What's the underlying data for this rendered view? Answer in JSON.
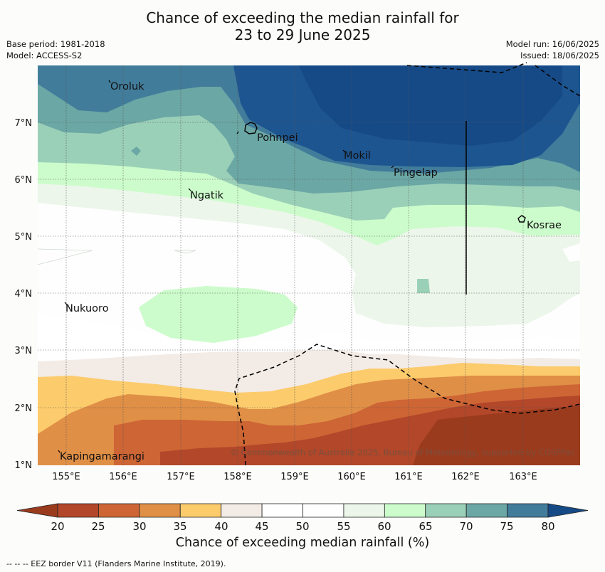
{
  "title": {
    "line1": "Chance of exceeding the median rainfall for",
    "line2": "23 to 29 June 2025"
  },
  "meta_left": {
    "base_period": "Base period: 1981-2018",
    "model": "Model: ACCESS-S2"
  },
  "meta_right": {
    "model_run": "Model run: 16/06/2025",
    "issued": "Issued: 18/06/2025"
  },
  "map": {
    "lon_labels": [
      "155°E",
      "156°E",
      "157°E",
      "158°E",
      "159°E",
      "160°E",
      "161°E",
      "162°E",
      "163°E"
    ],
    "lat_labels": [
      "7°N",
      "6°N",
      "5°N",
      "4°N",
      "3°N",
      "2°N",
      "1°N"
    ],
    "places": [
      {
        "name": "Oroluk"
      },
      {
        "name": "Pohnpei"
      },
      {
        "name": "Mokil"
      },
      {
        "name": "Pingelap"
      },
      {
        "name": "Ngatik"
      },
      {
        "name": "Kosrae"
      },
      {
        "name": "Nukuoro"
      },
      {
        "name": "Kapingamarangi"
      }
    ],
    "copyright": "© Commonwealth of Australia 2025, Bureau of Meteorology, supported by COSPPac"
  },
  "colorbar": {
    "ticks": [
      "20",
      "25",
      "30",
      "35",
      "40",
      "45",
      "50",
      "55",
      "60",
      "65",
      "70",
      "75",
      "80"
    ],
    "under_color": "#9b3b1e",
    "over_color": "#164a87",
    "colors": [
      "#b2472a",
      "#cd6535",
      "#e08f46",
      "#fccb6c",
      "#f2ebe6",
      "#ffffff",
      "#fdfefd",
      "#ecf6ea",
      "#ccfccb",
      "#9bd0b8",
      "#6ba7a4",
      "#427c9b"
    ],
    "title": "Chance of exceeding median rainfall (%)"
  },
  "footnote": "--  --  -- EEZ border V11 (Flanders Marine Institute, 2019)."
}
